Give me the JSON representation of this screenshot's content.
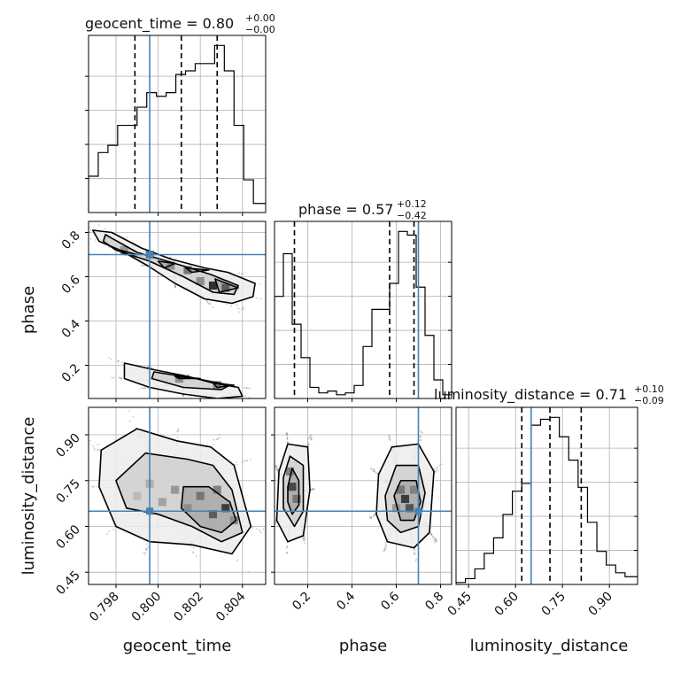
{
  "chart_data": {
    "type": "corner",
    "parameters": [
      "geocent_time",
      "phase",
      "luminosity_distance"
    ],
    "truths": {
      "geocent_time": 0.7996,
      "phase": 0.7,
      "luminosity_distance": 0.65
    },
    "truth_color": "#4682b4",
    "grid": true,
    "titles": [
      {
        "param": "geocent_time",
        "prefix": "geocent_time = ",
        "median": "0.80",
        "plus": "+0.00",
        "minus": "−0.00"
      },
      {
        "param": "phase",
        "prefix": "phase = ",
        "median": "0.57",
        "plus": "+0.12",
        "minus": "−0.42"
      },
      {
        "param": "luminosity_distance",
        "prefix": "luminosity_distance = ",
        "median": "0.71",
        "plus": "+0.10",
        "minus": "−0.09"
      }
    ],
    "axes": {
      "geocent_time": {
        "range": [
          0.7967,
          0.8051
        ],
        "ticks": [
          0.798,
          0.8,
          0.802,
          0.804
        ],
        "tick_labels": [
          "0.798",
          "0.800",
          "0.802",
          "0.804"
        ],
        "label": "geocent_time"
      },
      "phase": {
        "range": [
          0.05,
          0.85
        ],
        "ticks": [
          0.2,
          0.4,
          0.6,
          0.8
        ],
        "tick_labels": [
          "0.2",
          "0.4",
          "0.6",
          "0.8"
        ],
        "label": "phase"
      },
      "luminosity_distance": {
        "range": [
          0.41,
          0.99
        ],
        "ticks": [
          0.45,
          0.6,
          0.75,
          0.9
        ],
        "tick_labels": [
          "0.45",
          "0.60",
          "0.75",
          "0.90"
        ],
        "label": "luminosity_distance"
      }
    },
    "histograms": [
      {
        "param": "geocent_time",
        "quantiles": [
          0.7989,
          0.8011,
          0.8028
        ],
        "edges": [
          0.7967,
          0.79716,
          0.79762,
          0.79808,
          0.79854,
          0.799,
          0.79946,
          0.79992,
          0.80038,
          0.80084,
          0.8013,
          0.80176,
          0.80222,
          0.80268,
          0.80314,
          0.8036,
          0.80406,
          0.80452,
          0.8051
        ],
        "counts": [
          20,
          33,
          37,
          48,
          48,
          58,
          66,
          64,
          66,
          76,
          78,
          82,
          82,
          92,
          78,
          48,
          18,
          5
        ]
      },
      {
        "param": "phase",
        "quantiles": [
          0.14,
          0.57,
          0.68
        ],
        "edges": [
          0.05,
          0.09,
          0.13,
          0.17,
          0.21,
          0.25,
          0.29,
          0.33,
          0.37,
          0.41,
          0.45,
          0.49,
          0.53,
          0.57,
          0.61,
          0.65,
          0.69,
          0.73,
          0.77,
          0.81,
          0.85
        ],
        "counts": [
          55,
          78,
          40,
          22,
          6,
          3,
          4,
          2,
          3,
          7,
          28,
          48,
          48,
          62,
          90,
          88,
          60,
          34,
          10,
          2
        ]
      },
      {
        "param": "luminosity_distance",
        "quantiles": [
          0.62,
          0.71,
          0.81
        ],
        "edges": [
          0.41,
          0.44,
          0.47,
          0.5,
          0.53,
          0.56,
          0.59,
          0.62,
          0.65,
          0.68,
          0.71,
          0.74,
          0.77,
          0.8,
          0.83,
          0.86,
          0.89,
          0.92,
          0.95,
          0.99
        ],
        "counts": [
          1,
          3,
          8,
          16,
          24,
          36,
          48,
          52,
          82,
          85,
          86,
          76,
          64,
          50,
          32,
          17,
          10,
          6,
          4
        ]
      }
    ],
    "contours": [
      {
        "x": "geocent_time",
        "y": "phase",
        "levels": [
          {
            "name": "outer",
            "paths": [
              [
                [
                  0.7969,
                  0.81
                ],
                [
                  0.7978,
                  0.8
                ],
                [
                  0.7992,
                  0.73
                ],
                [
                  0.8006,
                  0.68
                ],
                [
                  0.8022,
                  0.64
                ],
                [
                  0.8033,
                  0.62
                ],
                [
                  0.8046,
                  0.57
                ],
                [
                  0.8045,
                  0.51
                ],
                [
                  0.8035,
                  0.48
                ],
                [
                  0.8022,
                  0.5
                ],
                [
                  0.8008,
                  0.57
                ],
                [
                  0.7995,
                  0.65
                ],
                [
                  0.7982,
                  0.72
                ],
                [
                  0.7972,
                  0.76
                ]
              ],
              [
                [
                  0.7984,
                  0.21
                ],
                [
                  0.7998,
                  0.18
                ],
                [
                  0.8014,
                  0.15
                ],
                [
                  0.8026,
                  0.12
                ],
                [
                  0.8038,
                  0.1
                ],
                [
                  0.804,
                  0.06
                ],
                [
                  0.8028,
                  0.05
                ],
                [
                  0.8012,
                  0.07
                ],
                [
                  0.7996,
                  0.1
                ],
                [
                  0.7984,
                  0.14
                ]
              ]
            ]
          },
          {
            "name": "middle",
            "paths": [
              [
                [
                  0.7975,
                  0.79
                ],
                [
                  0.799,
                  0.71
                ],
                [
                  0.8008,
                  0.66
                ],
                [
                  0.8025,
                  0.61
                ],
                [
                  0.8038,
                  0.56
                ],
                [
                  0.8036,
                  0.52
                ],
                [
                  0.8026,
                  0.53
                ],
                [
                  0.8012,
                  0.6
                ],
                [
                  0.7996,
                  0.67
                ],
                [
                  0.798,
                  0.72
                ],
                [
                  0.7974,
                  0.76
                ]
              ],
              [
                [
                  0.7998,
                  0.17
                ],
                [
                  0.8018,
                  0.14
                ],
                [
                  0.8034,
                  0.11
                ],
                [
                  0.803,
                  0.09
                ],
                [
                  0.8012,
                  0.1
                ],
                [
                  0.7997,
                  0.14
                ]
              ]
            ]
          },
          {
            "name": "inner",
            "paths": [
              [
                [
                  0.7982,
                  0.72
                ],
                [
                  0.799,
                  0.7
                ],
                [
                  0.7984,
                  0.7
                ]
              ],
              [
                [
                  0.8,
                  0.67
                ],
                [
                  0.8008,
                  0.66
                ],
                [
                  0.8003,
                  0.64
                ]
              ],
              [
                [
                  0.8013,
                  0.64
                ],
                [
                  0.8024,
                  0.63
                ],
                [
                  0.8016,
                  0.62
                ]
              ],
              [
                [
                  0.8027,
                  0.59
                ],
                [
                  0.8038,
                  0.55
                ],
                [
                  0.8029,
                  0.53
                ]
              ],
              [
                [
                  0.8008,
                  0.15
                ],
                [
                  0.802,
                  0.14
                ],
                [
                  0.801,
                  0.14
                ]
              ],
              [
                [
                  0.8026,
                  0.12
                ],
                [
                  0.8036,
                  0.11
                ],
                [
                  0.8028,
                  0.1
                ]
              ]
            ]
          }
        ]
      },
      {
        "x": "geocent_time",
        "y": "luminosity_distance",
        "levels": [
          {
            "name": "outer",
            "paths": [
              [
                [
                  0.7973,
                  0.85
                ],
                [
                  0.799,
                  0.92
                ],
                [
                  0.8009,
                  0.88
                ],
                [
                  0.8025,
                  0.86
                ],
                [
                  0.8036,
                  0.8
                ],
                [
                  0.8044,
                  0.6
                ],
                [
                  0.8035,
                  0.51
                ],
                [
                  0.8016,
                  0.54
                ],
                [
                  0.7996,
                  0.55
                ],
                [
                  0.798,
                  0.6
                ],
                [
                  0.7972,
                  0.73
                ]
              ]
            ]
          },
          {
            "name": "middle",
            "paths": [
              [
                [
                  0.798,
                  0.75
                ],
                [
                  0.7994,
                  0.84
                ],
                [
                  0.8014,
                  0.82
                ],
                [
                  0.8026,
                  0.8
                ],
                [
                  0.8035,
                  0.72
                ],
                [
                  0.804,
                  0.58
                ],
                [
                  0.803,
                  0.55
                ],
                [
                  0.8016,
                  0.6
                ],
                [
                  0.8,
                  0.64
                ],
                [
                  0.7985,
                  0.66
                ]
              ]
            ]
          },
          {
            "name": "inner",
            "paths": [
              [
                [
                  0.8012,
                  0.73
                ],
                [
                  0.8024,
                  0.73
                ],
                [
                  0.8034,
                  0.68
                ],
                [
                  0.8037,
                  0.62
                ],
                [
                  0.803,
                  0.58
                ],
                [
                  0.802,
                  0.6
                ],
                [
                  0.8011,
                  0.66
                ]
              ]
            ]
          }
        ]
      },
      {
        "x": "phase",
        "y": "luminosity_distance",
        "levels": [
          {
            "name": "outer",
            "paths": [
              [
                [
                  0.07,
                  0.78
                ],
                [
                  0.11,
                  0.87
                ],
                [
                  0.2,
                  0.86
                ],
                [
                  0.21,
                  0.72
                ],
                [
                  0.18,
                  0.57
                ],
                [
                  0.11,
                  0.55
                ],
                [
                  0.06,
                  0.62
                ]
              ],
              [
                [
                  0.52,
                  0.77
                ],
                [
                  0.58,
                  0.86
                ],
                [
                  0.7,
                  0.87
                ],
                [
                  0.77,
                  0.78
                ],
                [
                  0.75,
                  0.58
                ],
                [
                  0.68,
                  0.53
                ],
                [
                  0.56,
                  0.55
                ],
                [
                  0.51,
                  0.64
                ]
              ]
            ]
          },
          {
            "name": "middle",
            "paths": [
              [
                [
                  0.09,
                  0.76
                ],
                [
                  0.12,
                  0.83
                ],
                [
                  0.18,
                  0.8
                ],
                [
                  0.18,
                  0.65
                ],
                [
                  0.14,
                  0.6
                ],
                [
                  0.09,
                  0.66
                ]
              ],
              [
                [
                  0.55,
                  0.7
                ],
                [
                  0.6,
                  0.8
                ],
                [
                  0.7,
                  0.8
                ],
                [
                  0.73,
                  0.71
                ],
                [
                  0.7,
                  0.6
                ],
                [
                  0.62,
                  0.58
                ],
                [
                  0.56,
                  0.62
                ]
              ]
            ]
          },
          {
            "name": "inner",
            "paths": [
              [
                [
                  0.11,
                  0.73
                ],
                [
                  0.13,
                  0.79
                ],
                [
                  0.16,
                  0.75
                ],
                [
                  0.16,
                  0.67
                ],
                [
                  0.13,
                  0.64
                ],
                [
                  0.11,
                  0.68
                ]
              ],
              [
                [
                  0.59,
                  0.7
                ],
                [
                  0.62,
                  0.75
                ],
                [
                  0.69,
                  0.75
                ],
                [
                  0.71,
                  0.68
                ],
                [
                  0.68,
                  0.62
                ],
                [
                  0.62,
                  0.62
                ]
              ]
            ]
          }
        ]
      }
    ],
    "density_cells": [
      {
        "x": "geocent_time",
        "y": "phase",
        "cells": [
          [
            0.8026,
            0.56,
            0.9
          ],
          [
            0.802,
            0.58,
            0.5
          ],
          [
            0.8014,
            0.63,
            0.6
          ],
          [
            0.8006,
            0.65,
            0.5
          ],
          [
            0.7996,
            0.7,
            0.55
          ],
          [
            0.7984,
            0.72,
            0.45
          ],
          [
            0.8032,
            0.55,
            0.7
          ],
          [
            0.801,
            0.14,
            0.5
          ],
          [
            0.8028,
            0.11,
            0.55
          ]
        ]
      },
      {
        "x": "geocent_time",
        "y": "luminosity_distance",
        "cells": [
          [
            0.8032,
            0.66,
            0.85
          ],
          [
            0.8026,
            0.64,
            0.7
          ],
          [
            0.802,
            0.7,
            0.6
          ],
          [
            0.8014,
            0.66,
            0.5
          ],
          [
            0.8008,
            0.72,
            0.45
          ],
          [
            0.8002,
            0.68,
            0.4
          ],
          [
            0.7996,
            0.74,
            0.35
          ],
          [
            0.8028,
            0.72,
            0.55
          ],
          [
            0.8036,
            0.62,
            0.5
          ],
          [
            0.799,
            0.7,
            0.3
          ]
        ]
      },
      {
        "x": "phase",
        "y": "luminosity_distance",
        "cells": [
          [
            0.13,
            0.73,
            0.8
          ],
          [
            0.12,
            0.78,
            0.55
          ],
          [
            0.15,
            0.69,
            0.6
          ],
          [
            0.64,
            0.69,
            0.85
          ],
          [
            0.66,
            0.66,
            0.75
          ],
          [
            0.62,
            0.72,
            0.6
          ],
          [
            0.68,
            0.72,
            0.55
          ],
          [
            0.6,
            0.66,
            0.45
          ]
        ]
      }
    ]
  }
}
